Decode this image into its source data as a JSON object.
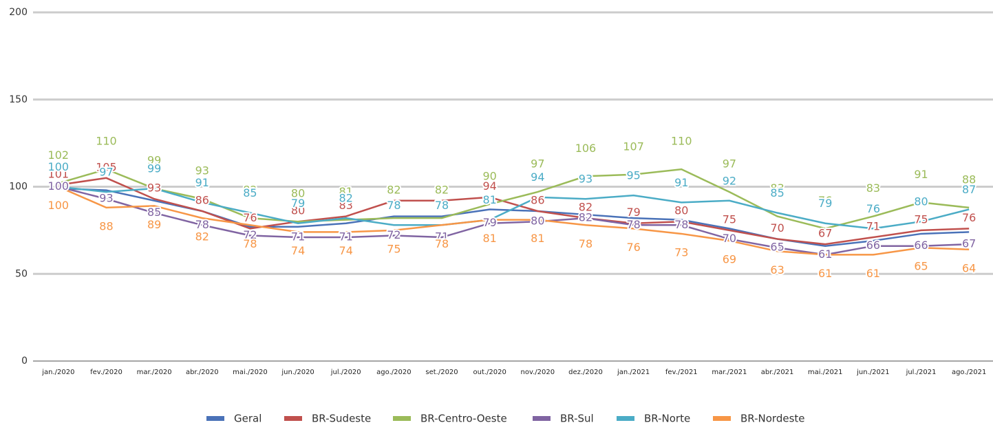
{
  "chart_data": {
    "type": "line",
    "categories": [
      "jan./2020",
      "fev./2020",
      "mar./2020",
      "abr./2020",
      "mai./2020",
      "jun./2020",
      "jul./2020",
      "ago./2020",
      "set./2020",
      "out./2020",
      "nov./2020",
      "dez./2020",
      "jan./2021",
      "fev./2021",
      "mar./2021",
      "abr./2021",
      "mai./2021",
      "jun./2021",
      "jul./2021",
      "ago./2021"
    ],
    "series": [
      {
        "name": "Geral",
        "color": "#4a72b8",
        "values": [
          99,
          98,
          92,
          86,
          77,
          77,
          79,
          83,
          83,
          87,
          86,
          84,
          82,
          81,
          76,
          70,
          66,
          69,
          73,
          74
        ]
      },
      {
        "name": "BR-Sudeste",
        "color": "#c0504d",
        "values": [
          101,
          105,
          93,
          86,
          76,
          80,
          83,
          92,
          92,
          94,
          86,
          82,
          79,
          80,
          75,
          70,
          67,
          71,
          75,
          76
        ]
      },
      {
        "name": "BR-Centro-Oeste",
        "color": "#9bbb59",
        "values": [
          102,
          110,
          99,
          93,
          82,
          80,
          81,
          82,
          82,
          90,
          97,
          106,
          107,
          110,
          97,
          83,
          76,
          83,
          91,
          88
        ]
      },
      {
        "name": "BR-Sul",
        "color": "#8064a2",
        "values": [
          100,
          93,
          85,
          78,
          72,
          71,
          71,
          72,
          71,
          79,
          80,
          82,
          78,
          78,
          70,
          65,
          61,
          66,
          66,
          67
        ]
      },
      {
        "name": "BR-Norte",
        "color": "#4bacc6",
        "values": [
          100,
          97,
          99,
          91,
          85,
          79,
          82,
          78,
          78,
          81,
          94,
          93,
          95,
          91,
          92,
          85,
          79,
          76,
          80,
          87
        ]
      },
      {
        "name": "BR-Nordeste",
        "color": "#f79646",
        "values": [
          100,
          88,
          89,
          82,
          78,
          74,
          74,
          75,
          78,
          81,
          81,
          78,
          76,
          73,
          69,
          63,
          61,
          61,
          65,
          64
        ]
      }
    ],
    "ylim": [
      0,
      200
    ],
    "yticks": [
      0,
      50,
      100,
      150,
      200
    ],
    "grid": true,
    "legend": "bottom"
  }
}
